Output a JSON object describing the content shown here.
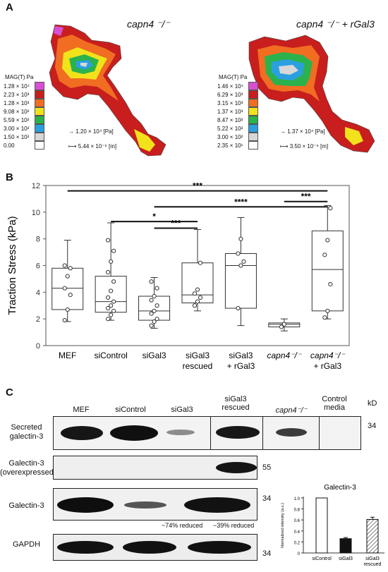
{
  "panelA": {
    "letter": "A",
    "left": {
      "title": "capn4 ⁻/⁻",
      "scale_title": "MAG(T) Pa",
      "scale": [
        {
          "label": "1.28 × 10⁴",
          "color": "#d94fd4"
        },
        {
          "label": "2.23 × 10³",
          "color": "#c81e1e"
        },
        {
          "label": "1.28 × 10³",
          "color": "#f06d22"
        },
        {
          "label": "9.08 × 10²",
          "color": "#f2e21b"
        },
        {
          "label": "5.59 × 10²",
          "color": "#2bb24c"
        },
        {
          "label": "3.00 × 10²",
          "color": "#2aa0e0"
        },
        {
          "label": "1.50 × 10²",
          "color": "#d7d7d7"
        },
        {
          "label": "0.00",
          "color": "#ffffff"
        }
      ],
      "force_key": "1.20 × 10⁴ [Pa]",
      "length_key": "5.44 × 10⁻⁶ [m]"
    },
    "right": {
      "title": "capn4 ⁻/⁻ + rGal3",
      "scale_title": "MAG(T) Pa",
      "scale": [
        {
          "label": "1.46 × 10⁴",
          "color": "#d94fd4"
        },
        {
          "label": "6.29 × 10³",
          "color": "#c81e1e"
        },
        {
          "label": "3.15 × 10³",
          "color": "#f06d22"
        },
        {
          "label": "1.37 × 10³",
          "color": "#f2e21b"
        },
        {
          "label": "8.47 × 10²",
          "color": "#2bb24c"
        },
        {
          "label": "5.22 × 10²",
          "color": "#2aa0e0"
        },
        {
          "label": "3.00 × 10²",
          "color": "#d7d7d7"
        },
        {
          "label": "2.35 × 10¹",
          "color": "#ffffff"
        }
      ],
      "force_key": "1.37 × 10⁴ [Pa]",
      "length_key": "3.50 × 10⁻⁶ [m]"
    }
  },
  "chart_data": {
    "type": "box",
    "panel_letter": "B",
    "ylabel": "Traction Stress (kPa)",
    "ylim": [
      0,
      12
    ],
    "yticks": [
      0,
      2,
      4,
      6,
      8,
      10,
      12
    ],
    "categories": [
      "MEF",
      "siControl",
      "siGal3",
      "siGal3\nrescued",
      "siGal3\n+ rGal3",
      "capn4⁻/⁻",
      "capn4⁻/⁻\n+ rGal3"
    ],
    "boxes": [
      {
        "q1": 2.7,
        "median": 4.3,
        "q3": 5.8,
        "whislo": 1.8,
        "whishi": 7.9,
        "points": [
          1.9,
          2.7,
          3.8,
          4.3,
          5.2,
          5.8,
          6.0
        ]
      },
      {
        "q1": 2.5,
        "median": 3.3,
        "q3": 5.2,
        "whislo": 1.9,
        "whishi": 9.2,
        "points": [
          2.0,
          2.3,
          2.6,
          2.8,
          3.0,
          3.3,
          3.6,
          4.1,
          4.8,
          5.5,
          6.3,
          7.1,
          7.9
        ]
      },
      {
        "q1": 1.9,
        "median": 2.6,
        "q3": 3.7,
        "whislo": 1.3,
        "whishi": 5.1,
        "points": [
          1.5,
          1.8,
          2.0,
          2.4,
          2.6,
          3.0,
          3.4,
          3.7,
          4.3,
          4.8
        ]
      },
      {
        "q1": 3.2,
        "median": 3.8,
        "q3": 6.2,
        "whislo": 2.6,
        "whishi": 8.7,
        "points": [
          3.0,
          3.3,
          3.6,
          3.9,
          4.2,
          6.2
        ]
      },
      {
        "q1": 2.8,
        "median": 6.0,
        "q3": 6.9,
        "whislo": 1.5,
        "whishi": 9.6,
        "points": [
          2.8,
          6.0,
          6.3,
          6.9,
          8.0
        ]
      },
      {
        "q1": 1.4,
        "median": 1.6,
        "q3": 1.7,
        "whislo": 1.1,
        "whishi": 2.0,
        "points": [
          1.4,
          1.6
        ]
      },
      {
        "q1": 2.6,
        "median": 5.7,
        "q3": 8.6,
        "whislo": 2.0,
        "whishi": 10.5,
        "points": [
          2.1,
          2.6,
          4.6,
          6.8,
          7.9,
          10.3
        ]
      }
    ],
    "significance": [
      {
        "from": 0,
        "to": 6,
        "label": "***",
        "y": 11.6
      },
      {
        "from": 1,
        "to": 3,
        "label": "*",
        "y": 9.3
      },
      {
        "from": 2,
        "to": 6,
        "label": "****",
        "y": 10.4
      },
      {
        "from": 2,
        "to": 3,
        "label": "***",
        "y": 8.8
      },
      {
        "from": 5,
        "to": 6,
        "label": "***",
        "y": 10.8
      }
    ]
  },
  "panelC": {
    "letter": "C",
    "lanes": [
      "MEF",
      "siControl",
      "siGal3",
      "siGal3\nrescued",
      "capn4⁻/⁻",
      "Control\nmedia"
    ],
    "kd_header": "kD",
    "rows": [
      {
        "label": "Secreted\ngalectin-3",
        "kd": "34"
      },
      {
        "label": "Galectin-3\n(overexpressed)",
        "kd": "55"
      },
      {
        "label": "Galectin-3",
        "kd": "34"
      },
      {
        "label": "GAPDH",
        "kd": "34"
      }
    ],
    "notes": [
      "~74% reduced",
      "~39% reduced"
    ],
    "inset": {
      "title": "Galectin-3",
      "ylabel": "Normalized intensity (a.u.)",
      "yticks": [
        "0",
        "0.2",
        "0.4",
        "0.6",
        "0.8",
        "1.0"
      ],
      "categories": [
        "siControl",
        "siGal3",
        "siGal3\nrescued"
      ],
      "values": [
        1.0,
        0.26,
        0.61
      ],
      "errors": [
        0.0,
        0.02,
        0.04
      ]
    }
  }
}
